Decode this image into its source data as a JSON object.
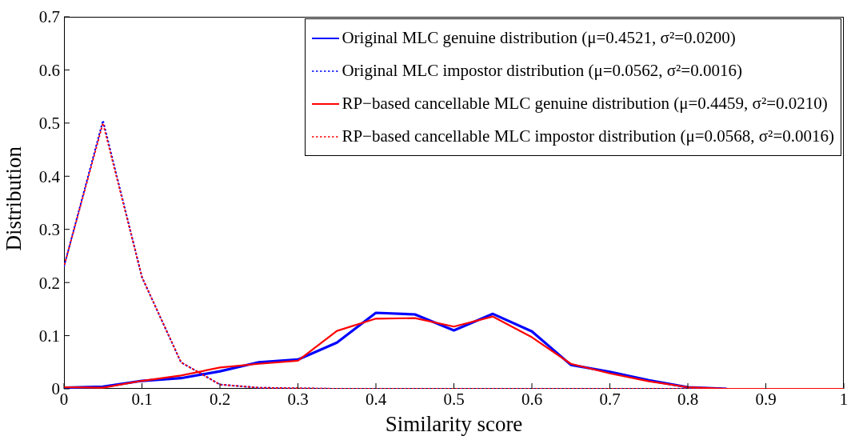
{
  "chart_data": {
    "type": "line",
    "xlabel": "Similarity score",
    "ylabel": "Distribution",
    "x": [
      0,
      0.05,
      0.1,
      0.15,
      0.2,
      0.25,
      0.3,
      0.35,
      0.4,
      0.45,
      0.5,
      0.55,
      0.6,
      0.65,
      0.7,
      0.75,
      0.8,
      0.85,
      0.9,
      0.95,
      1
    ],
    "series": [
      {
        "name": "Original MLC genuine distribution (μ=0.4521, σ²=0.0200)",
        "color": "#0000ff",
        "line_style": "solid",
        "values": [
          0.002,
          0.004,
          0.015,
          0.02,
          0.033,
          0.05,
          0.055,
          0.087,
          0.143,
          0.14,
          0.11,
          0.141,
          0.108,
          0.045,
          0.032,
          0.016,
          0.003,
          0,
          null,
          null,
          null
        ]
      },
      {
        "name": "Original MLC impostor distribution (μ=0.0562, σ²=0.0016)",
        "color": "#0000ff",
        "line_style": "dotted",
        "values": [
          0.23,
          0.505,
          0.21,
          0.05,
          0.008,
          0.002,
          0.001,
          0,
          0,
          0,
          0,
          0,
          0,
          0,
          0,
          0,
          0,
          0,
          null,
          null,
          null
        ]
      },
      {
        "name": "RP−based cancellable MLC genuine distribution (μ=0.4459, σ²=0.0210)",
        "color": "#ff0000",
        "line_style": "solid",
        "values": [
          0.003,
          0.002,
          0.015,
          0.025,
          0.04,
          0.047,
          0.053,
          0.109,
          0.132,
          0.133,
          0.117,
          0.136,
          0.097,
          0.047,
          0.029,
          0.014,
          0.003,
          0,
          0,
          0,
          0
        ]
      },
      {
        "name": "RP−based cancellable MLC impostor distribution (μ=0.0568, σ²=0.0016)",
        "color": "#ff0000",
        "line_style": "dotted",
        "values": [
          0.23,
          0.5,
          0.21,
          0.05,
          0.008,
          0.002,
          0.001,
          0,
          0,
          0,
          0,
          0,
          0,
          0,
          0,
          0,
          0,
          0,
          0,
          0,
          0
        ]
      }
    ],
    "xlim": [
      0,
      1
    ],
    "xticks": [
      0,
      0.1,
      0.2,
      0.3,
      0.4,
      0.5,
      0.6,
      0.7,
      0.8,
      0.9,
      1
    ],
    "ylim": [
      0,
      0.7
    ],
    "yticks": [
      0,
      0.1,
      0.2,
      0.3,
      0.4,
      0.5,
      0.6,
      0.7
    ],
    "legend": "top right"
  }
}
